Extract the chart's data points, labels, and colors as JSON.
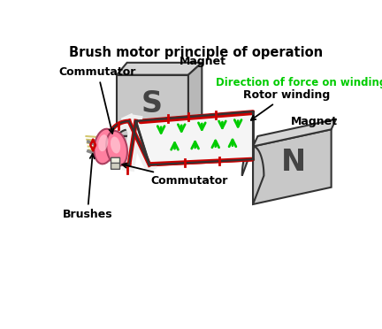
{
  "title": "Brush motor principle of operation",
  "title_fontsize": 10.5,
  "title_fontweight": "bold",
  "bg_color": "#ffffff",
  "magnet_color": "#c8c8c8",
  "magnet_color2": "#b0b0b0",
  "magnet_color3": "#a0a0a0",
  "magnet_edge": "#333333",
  "rotor_color": "#ff80a0",
  "rotor_color2": "#ffb0c8",
  "green_arrow_color": "#00cc00",
  "red_color": "#cc0000",
  "winding_fill": "#ffffff",
  "winding_line": "#cc0000",
  "winding_outline": "#333333",
  "label_color": "#000000",
  "direction_label_color": "#00cc00",
  "labels": {
    "commutator_top": "Commutator",
    "magnet_top": "Magnet",
    "direction": "Direction of force on winding",
    "rotor_winding": "Rotor winding",
    "magnet_right": "Magnet",
    "commutator_bottom": "Commutator",
    "brushes": "Brushes"
  },
  "S_label": "S",
  "N_label": "N"
}
